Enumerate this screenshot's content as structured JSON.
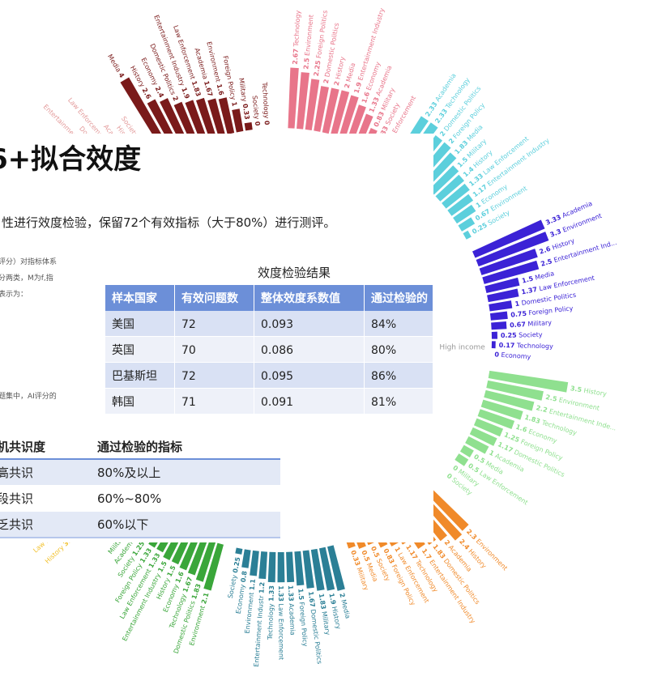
{
  "radial": {
    "groups": [
      {
        "color": "#e39a9a",
        "items": [
          {
            "label": "Entertainment Indust",
            "value": 1.5
          },
          {
            "label": "Domestic",
            "value": 1.4
          },
          {
            "label": "Law Enforcement",
            "value": 1.33
          },
          {
            "label": "Academia",
            "value": 1
          },
          {
            "label": "History",
            "value": 1
          },
          {
            "label": "Society",
            "value": 0.67
          }
        ]
      },
      {
        "color": "#7a1a1a",
        "items": [
          {
            "label": "Media",
            "value": 4
          },
          {
            "label": "History",
            "value": 2.6
          },
          {
            "label": "Economy",
            "value": 2.4
          },
          {
            "label": "Domestic Politics",
            "value": 2
          },
          {
            "label": "Entertainment Industry",
            "value": 1.9
          },
          {
            "label": "Law Enforcement",
            "value": 1.83
          },
          {
            "label": "Academia",
            "value": 1.67
          },
          {
            "label": "Environment",
            "value": 1.6
          },
          {
            "label": "Foreign Policy",
            "value": 1
          },
          {
            "label": "Military",
            "value": 0.33
          },
          {
            "label": "Society",
            "value": 0
          },
          {
            "label": "Technology",
            "value": 0
          }
        ]
      },
      {
        "color": "#e8758a",
        "items": [
          {
            "label": "Technology",
            "value": 2.67
          },
          {
            "label": "Environment",
            "value": 2.5
          },
          {
            "label": "Foreign Politics",
            "value": 2.25
          },
          {
            "label": "Domestic Politics",
            "value": 2
          },
          {
            "label": "History",
            "value": 2
          },
          {
            "label": "Media",
            "value": 2
          },
          {
            "label": "Entertainment Industry",
            "value": 1.9
          },
          {
            "label": "Economy",
            "value": 1.6
          },
          {
            "label": "Academia",
            "value": 1.33
          },
          {
            "label": "Military",
            "value": 0.83
          },
          {
            "label": "Society",
            "value": 0.33
          },
          {
            "label": "Law Enforcement",
            "value": 0
          }
        ]
      },
      {
        "color": "#5ccfdc",
        "items": [
          {
            "label": "Academia",
            "value": 2.33
          },
          {
            "label": "Technology",
            "value": 2.33
          },
          {
            "label": "Domestic Politics",
            "value": 2
          },
          {
            "label": "Foreign Policy",
            "value": 2
          },
          {
            "label": "Media",
            "value": 1.83
          },
          {
            "label": "Military",
            "value": 1.5
          },
          {
            "label": "History",
            "value": 1.4
          },
          {
            "label": "Law Enforcement",
            "value": 1.33
          },
          {
            "label": "Entertainment Industry",
            "value": 1.17
          },
          {
            "label": "Economy",
            "value": 1
          },
          {
            "label": "Environment",
            "value": 0.67
          },
          {
            "label": "Society",
            "value": 0.25
          }
        ]
      },
      {
        "name": "High income",
        "color": "#3b22d6",
        "items": [
          {
            "label": "Academia",
            "value": 3.33
          },
          {
            "label": "Environment",
            "value": 3.3
          },
          {
            "label": "History",
            "value": 2.6
          },
          {
            "label": "Entertainment Ind...",
            "value": 2.5
          },
          {
            "label": "Media",
            "value": 1.5
          },
          {
            "label": "Law Enforcement",
            "value": 1.37
          },
          {
            "label": "Domestic Politics",
            "value": 1
          },
          {
            "label": "Foreign Policy",
            "value": 0.75
          },
          {
            "label": "Military",
            "value": 0.67
          },
          {
            "label": "Society",
            "value": 0.25
          },
          {
            "label": "Technology",
            "value": 0.17
          },
          {
            "label": "Economy",
            "value": 0
          }
        ]
      },
      {
        "color": "#8fe08f",
        "items": [
          {
            "label": "History",
            "value": 3.5
          },
          {
            "label": "Environment",
            "value": 2.5
          },
          {
            "label": "Entertainment Inde...",
            "value": 2.2
          },
          {
            "label": "Technology",
            "value": 1.83
          },
          {
            "label": "Economy",
            "value": 1.6
          },
          {
            "label": "Foreign Policy",
            "value": 1.25
          },
          {
            "label": "Domestic Politics",
            "value": 1.17
          },
          {
            "label": "Academia",
            "value": 1
          },
          {
            "label": "Media",
            "value": 0.5
          },
          {
            "label": "Law Enforcement",
            "value": 0.5
          },
          {
            "label": "Military",
            "value": 0
          },
          {
            "label": "Society",
            "value": 0
          }
        ]
      },
      {
        "color": "#f08a2a",
        "items": [
          {
            "label": "Environment",
            "value": 2.3
          },
          {
            "label": "History",
            "value": 2.4
          },
          {
            "label": "Academia",
            "value": 2
          },
          {
            "label": "Domestic Politics",
            "value": 1.83
          },
          {
            "label": "Entertainment Industry",
            "value": 1.7
          },
          {
            "label": "Technology",
            "value": 1.17
          },
          {
            "label": "Law Enforcement",
            "value": 1
          },
          {
            "label": "Foreign Policy",
            "value": 0.83
          },
          {
            "label": "Society",
            "value": 0.5
          },
          {
            "label": "Media",
            "value": 0.5
          },
          {
            "label": "Military",
            "value": 0.33
          }
        ]
      },
      {
        "color": "#2b7f96",
        "items": [
          {
            "label": "Media",
            "value": 2
          },
          {
            "label": "History",
            "value": 1.9
          },
          {
            "label": "Military",
            "value": 1.83
          },
          {
            "label": "Domestic Politics",
            "value": 1.67
          },
          {
            "label": "Foreign Policy",
            "value": 1.5
          },
          {
            "label": "Academia",
            "value": 1.33
          },
          {
            "label": "Law Enforcement",
            "value": 1.33
          },
          {
            "label": "Technology",
            "value": 1.33
          },
          {
            "label": "Entertainment Industr",
            "value": 1.2
          },
          {
            "label": "Environment",
            "value": 1.1
          },
          {
            "label": "Economy",
            "value": 0.8
          },
          {
            "label": "Society",
            "value": 0.25
          }
        ]
      },
      {
        "color": "#3aa63a",
        "items": [
          {
            "label": "Environment",
            "value": 2.1
          },
          {
            "label": "Domestic Politics",
            "value": 1.83
          },
          {
            "label": "Technology",
            "value": 1.67
          },
          {
            "label": "Economy",
            "value": 1.6
          },
          {
            "label": "History",
            "value": 1.5
          },
          {
            "label": "Entertainment Industry",
            "value": 1.5
          },
          {
            "label": "Law Enforcement",
            "value": 1.33
          },
          {
            "label": "Foreign Policy",
            "value": 1.33
          },
          {
            "label": "Society",
            "value": 1.25
          },
          {
            "label": "Academia",
            "value": 1
          },
          {
            "label": "Military",
            "value": 0.67
          },
          {
            "label": "Media",
            "value": 0
          }
        ]
      },
      {
        "color": "#f2c230",
        "items": [
          {
            "label": "History",
            "value": 3.1
          },
          {
            "label": "Law Enforcement",
            "value": 2
          },
          {
            "label": "Environment",
            "value": 1.67
          },
          {
            "label": "Academia",
            "value": 1.5
          },
          {
            "label": "Technology",
            "value": 1.33
          },
          {
            "label": "Domestic Politics",
            "value": 1
          },
          {
            "label": "Entertainme",
            "value": 0.67
          }
        ]
      }
    ]
  },
  "slide": {
    "title": "6+拟合效度",
    "subtitle": "性进行效度检验，保留72个有效指标（大于80%）进行测评。",
    "notes": [
      "评分）对指标体系",
      "分两类，M为f,指",
      "表示为：",
      "题集中，AI评分的"
    ],
    "table": {
      "title": "效度检验结果",
      "header": [
        "样本国家",
        "有效问题数",
        "整体效度系数值",
        "通过检验的"
      ],
      "rows": [
        [
          "美国",
          "72",
          "0.093",
          "84%"
        ],
        [
          "英国",
          "70",
          "0.086",
          "80%"
        ],
        [
          "巴基斯坦",
          "72",
          "0.095",
          "86%"
        ],
        [
          "韩国",
          "71",
          "0.091",
          "81%"
        ]
      ]
    },
    "table2": {
      "header": [
        "机共识度",
        "通过检验的指标"
      ],
      "rows": [
        [
          "高共识",
          "80%及以上"
        ],
        [
          "段共识",
          "60%~80%"
        ],
        [
          "乏共识",
          "60%以下"
        ]
      ]
    }
  }
}
